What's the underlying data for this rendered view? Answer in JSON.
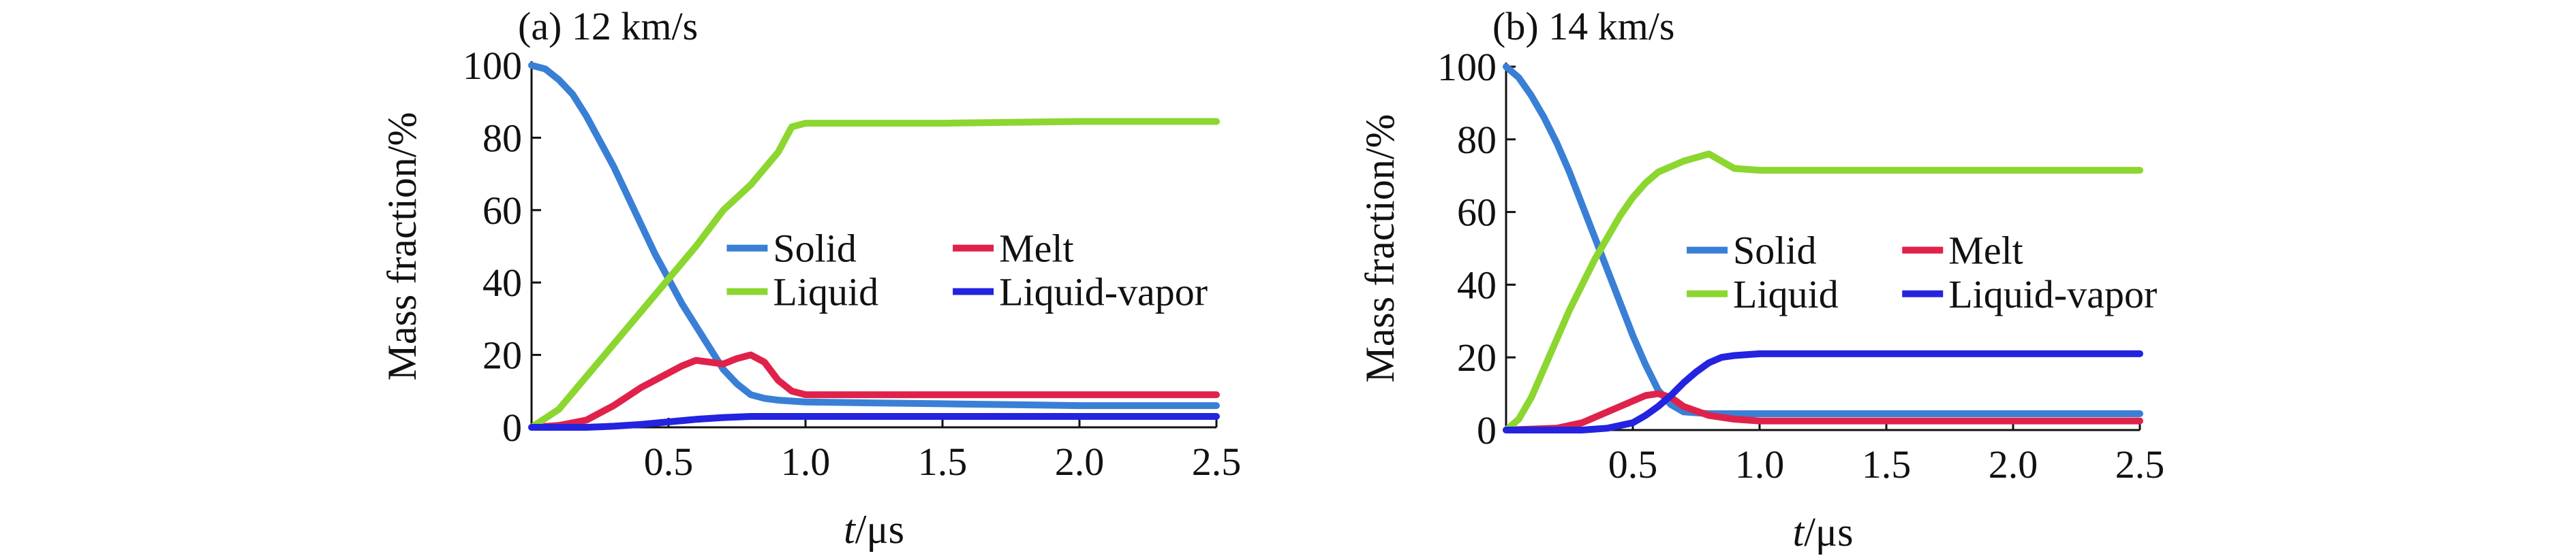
{
  "chart_data": [
    {
      "type": "line",
      "title": "(a) 12 km/s",
      "xlabel": "t/μs",
      "ylabel": "Mass fraction/%",
      "xlim": [
        0,
        2.5
      ],
      "ylim": [
        0,
        100
      ],
      "xticks": [
        "0.5",
        "1.0",
        "1.5",
        "2.0",
        "2.5"
      ],
      "xtick_values": [
        0.5,
        1.0,
        1.5,
        2.0,
        2.5
      ],
      "yticks": [
        "0",
        "20",
        "40",
        "60",
        "80",
        "100"
      ],
      "ytick_values": [
        0,
        20,
        40,
        60,
        80,
        100
      ],
      "grid": false,
      "legend_placement": "center-right",
      "series": [
        {
          "name": "Solid",
          "color": "#3a7fd6",
          "x": [
            0,
            0.05,
            0.1,
            0.15,
            0.2,
            0.25,
            0.3,
            0.35,
            0.4,
            0.45,
            0.5,
            0.55,
            0.6,
            0.65,
            0.7,
            0.75,
            0.8,
            0.85,
            0.9,
            1.0,
            1.5,
            2.0,
            2.5
          ],
          "y": [
            100,
            99,
            96,
            92,
            86,
            79,
            72,
            64,
            56,
            48,
            41,
            34,
            28,
            22,
            16,
            12,
            9,
            8,
            7.5,
            7,
            6.5,
            6,
            6
          ]
        },
        {
          "name": "Melt",
          "color": "#e0224a",
          "x": [
            0,
            0.1,
            0.2,
            0.3,
            0.4,
            0.5,
            0.55,
            0.6,
            0.65,
            0.7,
            0.75,
            0.8,
            0.85,
            0.9,
            0.95,
            1.0,
            1.5,
            2.0,
            2.5
          ],
          "y": [
            0,
            0.5,
            2,
            6,
            11,
            15,
            17,
            18.5,
            18,
            17.5,
            19,
            20,
            18,
            13,
            10,
            9,
            9,
            9,
            9
          ]
        },
        {
          "name": "Liquid",
          "color": "#8cd630",
          "x": [
            0,
            0.1,
            0.2,
            0.3,
            0.4,
            0.5,
            0.6,
            0.7,
            0.8,
            0.9,
            0.95,
            1.0,
            1.5,
            2.0,
            2.5
          ],
          "y": [
            0,
            5,
            14,
            23,
            32,
            41,
            50,
            60,
            67,
            76,
            83,
            84,
            84,
            84.5,
            84.5
          ]
        },
        {
          "name": "Liquid-vapor",
          "color": "#2323e0",
          "x": [
            0,
            0.2,
            0.3,
            0.4,
            0.5,
            0.6,
            0.7,
            0.8,
            1.0,
            1.5,
            2.0,
            2.5
          ],
          "y": [
            0,
            0,
            0.3,
            0.8,
            1.5,
            2.2,
            2.7,
            3,
            3,
            3,
            3,
            3
          ]
        }
      ]
    },
    {
      "type": "line",
      "title": "(b) 14 km/s",
      "xlabel": "t/μs",
      "ylabel": "Mass fraction/%",
      "xlim": [
        0,
        2.5
      ],
      "ylim": [
        0,
        100
      ],
      "xticks": [
        "0.5",
        "1.0",
        "1.5",
        "2.0",
        "2.5"
      ],
      "xtick_values": [
        0.5,
        1.0,
        1.5,
        2.0,
        2.5
      ],
      "yticks": [
        "0",
        "20",
        "40",
        "60",
        "80",
        "100"
      ],
      "ytick_values": [
        0,
        20,
        40,
        60,
        80,
        100
      ],
      "grid": false,
      "legend_placement": "center-right",
      "series": [
        {
          "name": "Solid",
          "color": "#3a7fd6",
          "x": [
            0,
            0.05,
            0.1,
            0.15,
            0.2,
            0.25,
            0.3,
            0.35,
            0.4,
            0.45,
            0.5,
            0.55,
            0.6,
            0.65,
            0.7,
            0.8,
            1.0,
            1.5,
            2.0,
            2.5
          ],
          "y": [
            100,
            97,
            92,
            86,
            79,
            71,
            62,
            53,
            44,
            35,
            26,
            18,
            11,
            7,
            5,
            4.5,
            4.5,
            4.5,
            4.5,
            4.5
          ]
        },
        {
          "name": "Melt",
          "color": "#e0224a",
          "x": [
            0,
            0.2,
            0.3,
            0.4,
            0.5,
            0.55,
            0.6,
            0.65,
            0.7,
            0.8,
            0.9,
            1.0,
            1.5,
            2.0,
            2.5
          ],
          "y": [
            0,
            0.5,
            2,
            5,
            8,
            9.5,
            10,
            9,
            6.5,
            4,
            3,
            2.5,
            2.5,
            2.5,
            2.5
          ]
        },
        {
          "name": "Liquid",
          "color": "#8cd630",
          "x": [
            0,
            0.05,
            0.1,
            0.15,
            0.2,
            0.25,
            0.3,
            0.35,
            0.4,
            0.45,
            0.5,
            0.55,
            0.6,
            0.7,
            0.8,
            0.85,
            0.9,
            1.0,
            1.5,
            2.0,
            2.5
          ],
          "y": [
            0,
            3,
            9,
            17,
            25,
            33,
            40,
            47,
            53,
            59,
            64,
            68,
            71,
            74,
            76,
            74,
            72,
            71.5,
            71.5,
            71.5,
            71.5
          ]
        },
        {
          "name": "Liquid-vapor",
          "color": "#2323e0",
          "x": [
            0,
            0.3,
            0.4,
            0.5,
            0.55,
            0.6,
            0.65,
            0.7,
            0.75,
            0.8,
            0.85,
            0.9,
            1.0,
            1.5,
            2.0,
            2.5
          ],
          "y": [
            0,
            0,
            0.5,
            2,
            4,
            6.5,
            9.5,
            13,
            16,
            18.5,
            20,
            20.5,
            21,
            21,
            21,
            21
          ]
        }
      ]
    }
  ]
}
